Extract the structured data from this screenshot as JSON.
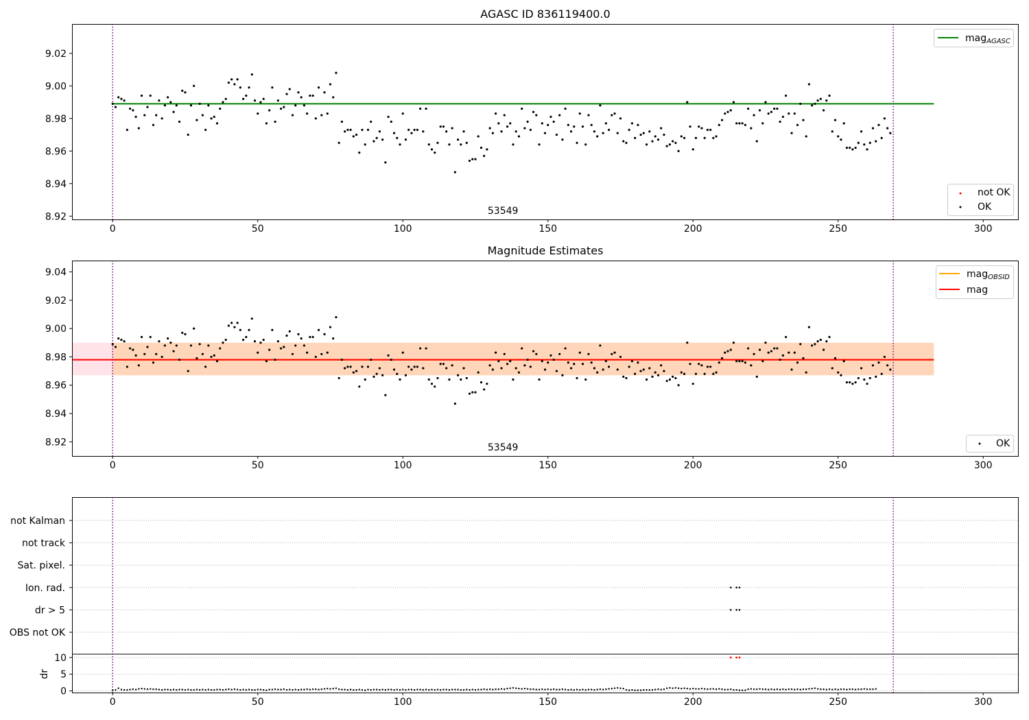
{
  "chart_data": [
    {
      "type": "scatter",
      "title": "AGASC ID 836119400.0",
      "xlabel": "",
      "ylabel": "",
      "xlim": [
        -14,
        312
      ],
      "ylim": [
        8.918,
        9.038
      ],
      "xticks": [
        0,
        50,
        100,
        150,
        200,
        250,
        300
      ],
      "xtick_labels": [
        "0",
        "50",
        "100",
        "150",
        "200",
        "250",
        "300"
      ],
      "yticks": [
        8.92,
        8.94,
        8.96,
        8.98,
        9.0,
        9.02
      ],
      "ytick_labels": [
        "8.92",
        "8.94",
        "8.96",
        "8.98",
        "9.00",
        "9.02"
      ],
      "grid": false,
      "legend_placement": [
        "top-right",
        "bottom-right"
      ],
      "legend_entries": [
        {
          "label": "mag",
          "sub": "AGASC",
          "kind": "line",
          "color": "#008000"
        },
        {
          "label": "not OK",
          "kind": "marker",
          "color": "#ff0000"
        },
        {
          "label": "OK",
          "kind": "marker",
          "color": "#000000"
        }
      ],
      "hlines": [
        {
          "y": 8.989,
          "x": [
            0,
            283
          ],
          "color": "#008000"
        }
      ],
      "vlines": [
        {
          "x": 0,
          "color": "#800080",
          "style": "dotted"
        },
        {
          "x": 269,
          "color": "#800080",
          "style": "dotted"
        }
      ],
      "annotations": [
        {
          "text": "53549",
          "x": 134.5
        }
      ],
      "series": [
        {
          "name": "OK",
          "color": "#000000",
          "x_start": 0,
          "x_step": 1,
          "y": [
            8.989,
            8.987,
            8.993,
            8.992,
            8.991,
            8.973,
            8.986,
            8.985,
            8.981,
            8.974,
            8.994,
            8.982,
            8.987,
            8.994,
            8.976,
            8.982,
            8.991,
            8.98,
            8.988,
            8.993,
            8.99,
            8.984,
            8.988,
            8.978,
            8.997,
            8.996,
            8.97,
            8.988,
            9.0,
            8.979,
            8.989,
            8.982,
            8.973,
            8.988,
            8.98,
            8.981,
            8.977,
            8.986,
            8.99,
            8.992,
            9.002,
            9.004,
            9.001,
            9.004,
            8.999,
            8.992,
            8.994,
            8.999,
            9.007,
            8.991,
            8.983,
            8.99,
            8.992,
            8.977,
            8.985,
            8.999,
            8.978,
            8.991,
            8.986,
            8.987,
            8.995,
            8.998,
            8.982,
            8.988,
            8.996,
            8.993,
            8.988,
            8.983,
            8.994,
            8.994,
            8.98,
            8.999,
            8.982,
            8.996,
            8.983,
            9.001,
            8.993,
            9.008,
            8.965,
            8.978,
            8.972,
            8.973,
            8.973,
            8.969,
            8.97,
            8.959,
            8.973,
            8.964,
            8.973,
            8.978,
            8.966,
            8.968,
            8.972,
            8.967,
            8.953,
            8.981,
            8.978,
            8.971,
            8.968,
            8.964,
            8.983,
            8.967,
            8.973,
            8.971,
            8.973,
            8.973,
            8.986,
            8.972,
            8.986,
            8.964,
            8.961,
            8.959,
            8.965,
            8.975,
            8.975,
            8.972,
            8.964,
            8.974,
            8.947,
            8.967,
            8.964,
            8.972,
            8.965,
            8.954,
            8.955,
            8.955,
            8.969,
            8.962,
            8.957,
            8.961,
            8.974,
            8.971,
            8.983,
            8.977,
            8.972,
            8.982,
            8.975,
            8.977,
            8.964,
            8.972,
            8.969,
            8.986,
            8.974,
            8.978,
            8.973,
            8.984,
            8.982,
            8.964,
            8.977,
            8.971,
            8.976,
            8.981,
            8.978,
            8.97,
            8.982,
            8.967,
            8.986,
            8.976,
            8.972,
            8.975,
            8.965,
            8.983,
            8.975,
            8.964,
            8.982,
            8.976,
            8.972,
            8.969,
            8.988,
            8.971,
            8.977,
            8.973,
            8.982,
            8.983,
            8.971,
            8.98,
            8.966,
            8.965,
            8.973,
            8.977,
            8.968,
            8.976,
            8.97,
            8.971,
            8.964,
            8.972,
            8.966,
            8.969,
            8.967,
            8.974,
            8.97,
            8.963,
            8.964,
            8.966,
            8.965,
            8.96,
            8.969,
            8.968,
            8.99,
            8.975,
            8.961,
            8.968,
            8.975,
            8.974,
            8.968,
            8.973,
            8.973,
            8.968,
            8.969,
            8.976,
            8.979,
            8.983,
            8.984,
            8.985,
            8.99,
            8.977,
            8.977,
            8.977,
            8.976,
            8.986,
            8.974,
            8.982,
            8.966,
            8.985,
            8.977,
            8.99,
            8.983,
            8.984,
            8.986,
            8.986,
            8.978,
            8.981,
            8.994,
            8.983,
            8.971,
            8.983,
            8.976,
            8.989,
            8.979,
            8.969,
            9.001,
            8.988,
            8.989,
            8.991,
            8.992,
            8.985,
            8.991,
            8.994,
            8.972,
            8.979,
            8.969,
            8.967,
            8.977,
            8.962,
            8.962,
            8.961,
            8.962,
            8.965,
            8.972,
            8.964,
            8.961,
            8.965,
            8.974,
            8.966,
            8.976,
            8.968,
            8.98,
            8.974,
            8.971
          ]
        }
      ]
    },
    {
      "type": "scatter",
      "title": "Magnitude Estimates",
      "xlabel": "",
      "ylabel": "",
      "xlim": [
        -14,
        312
      ],
      "ylim": [
        8.91,
        9.048
      ],
      "xticks": [
        0,
        50,
        100,
        150,
        200,
        250,
        300
      ],
      "xtick_labels": [
        "0",
        "50",
        "100",
        "150",
        "200",
        "250",
        "300"
      ],
      "yticks": [
        8.92,
        8.94,
        8.96,
        8.98,
        9.0,
        9.02,
        9.04
      ],
      "ytick_labels": [
        "8.92",
        "8.94",
        "8.96",
        "8.98",
        "9.00",
        "9.02",
        "9.04"
      ],
      "grid": false,
      "legend_placement": [
        "top-right",
        "bottom-right"
      ],
      "legend_entries": [
        {
          "label": "mag",
          "sub": "OBSID",
          "kind": "line",
          "color": "#ffa500"
        },
        {
          "label": "mag",
          "kind": "line",
          "color": "#ff0000"
        },
        {
          "label": "OK",
          "kind": "marker",
          "color": "#000000"
        }
      ],
      "bands": [
        {
          "y": [
            8.967,
            8.99
          ],
          "x": [
            -14,
            283
          ],
          "color": "#ffc0cb",
          "opacity": 0.45
        },
        {
          "y": [
            8.967,
            8.99
          ],
          "x": [
            0,
            283
          ],
          "color": "#ffa500",
          "opacity": 0.2
        }
      ],
      "hlines": [
        {
          "y": 8.978,
          "x": [
            0,
            283
          ],
          "color": "#ffa500"
        },
        {
          "y": 8.978,
          "x": [
            -14,
            283
          ],
          "color": "#ff0000"
        }
      ],
      "vlines": [
        {
          "x": 0,
          "color": "#800080",
          "style": "dotted"
        },
        {
          "x": 269,
          "color": "#800080",
          "style": "dotted"
        }
      ],
      "annotations": [
        {
          "text": "53549",
          "x": 134.5
        }
      ],
      "series_ref": "same OK values as first panel"
    },
    {
      "type": "scatter",
      "title": "",
      "xlabel": "",
      "ylabel": "dr",
      "xlim": [
        -14,
        312
      ],
      "xticks": [
        0,
        50,
        100,
        150,
        200,
        250,
        300
      ],
      "xtick_labels": [
        "0",
        "50",
        "100",
        "150",
        "200",
        "250",
        "300"
      ],
      "flag_rows": [
        "not Kalman",
        "not track",
        "Sat. pixel.",
        "Ion. rad.",
        "dr > 5",
        "OBS not OK"
      ],
      "flags": {
        "Ion. rad.": [
          213,
          215,
          216
        ],
        "dr > 5": [
          213,
          215,
          216
        ]
      },
      "dr_ylim": [
        -0.5,
        11
      ],
      "dr_yticks": [
        0,
        5,
        10
      ],
      "dr_ytick_labels": [
        "0",
        "5",
        "10"
      ],
      "dr_notok": {
        "x": [
          213,
          215,
          216
        ],
        "y": [
          10,
          10,
          10
        ]
      },
      "dr": [
        0.2,
        0.3,
        0.8,
        0.4,
        0.3,
        0.3,
        0.4,
        0.5,
        0.4,
        0.6,
        0.7,
        0.6,
        0.5,
        0.6,
        0.5,
        0.5,
        0.4,
        0.3,
        0.4,
        0.4,
        0.3,
        0.4,
        0.3,
        0.4,
        0.4,
        0.3,
        0.4,
        0.3,
        0.3,
        0.4,
        0.3,
        0.4,
        0.3,
        0.4,
        0.3,
        0.3,
        0.4,
        0.4,
        0.3,
        0.4,
        0.5,
        0.4,
        0.5,
        0.4,
        0.3,
        0.4,
        0.3,
        0.4,
        0.3,
        0.3,
        0.4,
        0.4,
        0.3,
        0.2,
        0.4,
        0.4,
        0.5,
        0.4,
        0.4,
        0.5,
        0.3,
        0.4,
        0.3,
        0.4,
        0.3,
        0.4,
        0.4,
        0.5,
        0.4,
        0.5,
        0.5,
        0.4,
        0.5,
        0.6,
        0.7,
        0.6,
        0.7,
        0.8,
        0.5,
        0.4,
        0.4,
        0.3,
        0.4,
        0.3,
        0.3,
        0.4,
        0.3,
        0.2,
        0.4,
        0.3,
        0.4,
        0.4,
        0.3,
        0.4,
        0.3,
        0.4,
        0.4,
        0.3,
        0.4,
        0.3,
        0.4,
        0.3,
        0.4,
        0.4,
        0.3,
        0.4,
        0.4,
        0.3,
        0.4,
        0.3,
        0.4,
        0.3,
        0.4,
        0.3,
        0.4,
        0.4,
        0.3,
        0.4,
        0.4,
        0.4,
        0.3,
        0.3,
        0.4,
        0.3,
        0.4,
        0.3,
        0.4,
        0.4,
        0.5,
        0.4,
        0.5,
        0.4,
        0.5,
        0.5,
        0.6,
        0.5,
        0.7,
        0.8,
        0.9,
        0.8,
        0.7,
        0.6,
        0.7,
        0.6,
        0.5,
        0.5,
        0.4,
        0.4,
        0.5,
        0.4,
        0.5,
        0.4,
        0.5,
        0.4,
        0.4,
        0.5,
        0.4,
        0.3,
        0.4,
        0.3,
        0.4,
        0.3,
        0.4,
        0.3,
        0.4,
        0.4,
        0.3,
        0.4,
        0.5,
        0.4,
        0.5,
        0.6,
        0.7,
        0.8,
        0.9,
        0.8,
        0.7,
        0.3,
        0.2,
        0.3,
        0.2,
        0.2,
        0.2,
        0.3,
        0.3,
        0.3,
        0.3,
        0.4,
        0.5,
        0.4,
        0.5,
        0.8,
        0.9,
        0.8,
        0.9,
        0.8,
        0.7,
        0.8,
        0.7,
        0.6,
        0.7,
        0.6,
        0.6,
        0.7,
        0.6,
        0.5,
        0.6,
        0.6,
        0.5,
        0.6,
        0.5,
        0.4,
        0.4,
        0.5,
        0.3,
        0.3,
        0.2,
        0.2,
        0.2,
        0.5,
        0.6,
        0.5,
        0.5,
        0.6,
        0.5,
        0.5,
        0.4,
        0.5,
        0.4,
        0.5,
        0.4,
        0.5,
        0.4,
        0.5,
        0.5,
        0.4,
        0.5,
        0.4,
        0.5,
        0.5,
        0.6,
        0.7,
        0.8,
        0.6,
        0.5,
        0.5,
        0.4,
        0.5,
        0.4,
        0.5,
        0.4,
        0.5,
        0.5,
        0.4,
        0.5,
        0.5,
        0.4,
        0.5,
        0.5,
        0.6,
        0.5,
        0.5,
        0.5,
        0.6
      ],
      "vlines": [
        {
          "x": 0,
          "color": "#800080",
          "style": "dotted"
        },
        {
          "x": 269,
          "color": "#800080",
          "style": "dotted"
        }
      ]
    }
  ]
}
